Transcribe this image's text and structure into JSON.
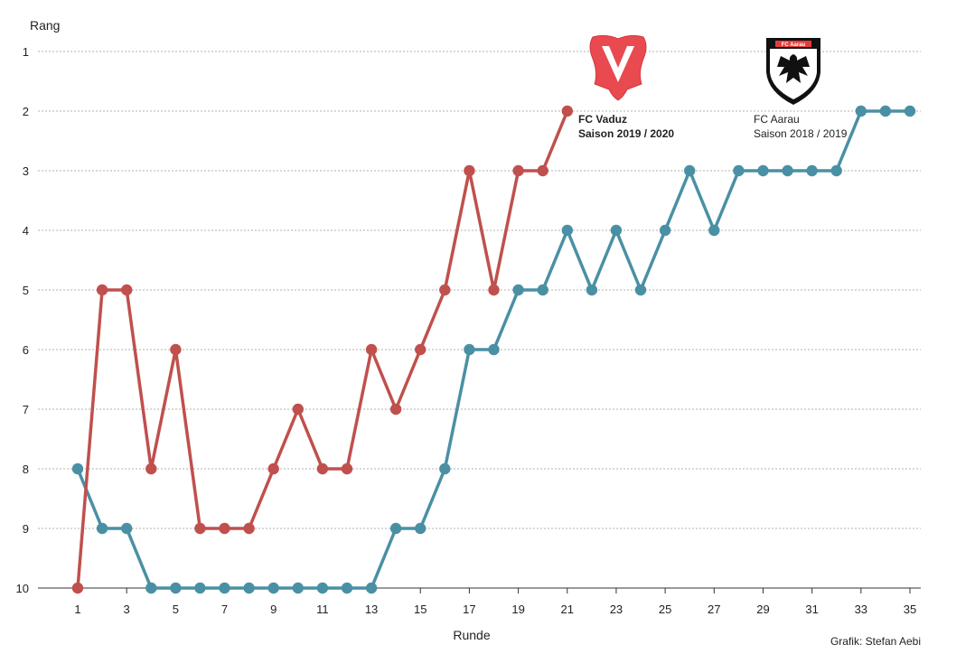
{
  "chart_data": {
    "type": "line",
    "ylabel": "Rang",
    "xlabel": "Runde",
    "credit": "Grafik: Stefan Aebi",
    "ylim": [
      1,
      10
    ],
    "y_reversed": true,
    "xlim": [
      1,
      35
    ],
    "y_ticks": [
      "1",
      "2",
      "3",
      "4",
      "5",
      "6",
      "7",
      "8",
      "9",
      "10"
    ],
    "x_ticks": [
      "1",
      "3",
      "5",
      "7",
      "9",
      "11",
      "13",
      "15",
      "17",
      "19",
      "21",
      "23",
      "25",
      "27",
      "29",
      "31",
      "33",
      "35"
    ],
    "grid": true,
    "series": [
      {
        "id": "vaduz",
        "name": "FC Vaduz",
        "subtitle": "Saison 2019 / 2020",
        "color": "#c0504d",
        "icon": "fc-vaduz-crest-icon",
        "x": [
          1,
          2,
          3,
          4,
          5,
          6,
          7,
          8,
          9,
          10,
          11,
          12,
          13,
          14,
          15,
          16,
          17,
          18,
          19,
          20,
          21
        ],
        "values": [
          10,
          5,
          5,
          8,
          6,
          9,
          9,
          9,
          8,
          7,
          8,
          8,
          6,
          7,
          6,
          5,
          3,
          5,
          3,
          3,
          2
        ]
      },
      {
        "id": "aarau",
        "name": "FC Aarau",
        "subtitle": "Saison 2018 / 2019",
        "color": "#4a90a4",
        "icon": "fc-aarau-crest-icon",
        "x": [
          1,
          2,
          3,
          4,
          5,
          6,
          7,
          8,
          9,
          10,
          11,
          12,
          13,
          14,
          15,
          16,
          17,
          18,
          19,
          20,
          21,
          22,
          23,
          24,
          25,
          26,
          27,
          28,
          29,
          30,
          31,
          32,
          33,
          34,
          35
        ],
        "values": [
          8,
          9,
          9,
          10,
          10,
          10,
          10,
          10,
          10,
          10,
          10,
          10,
          10,
          9,
          9,
          8,
          6,
          6,
          5,
          5,
          4,
          5,
          4,
          5,
          4,
          3,
          4,
          3,
          3,
          3,
          3,
          3,
          2,
          2,
          2
        ]
      }
    ]
  }
}
